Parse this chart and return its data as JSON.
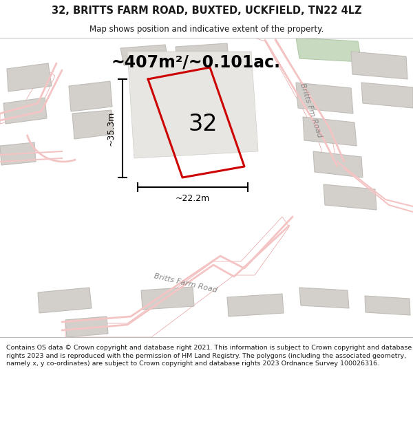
{
  "title": "32, BRITTS FARM ROAD, BUXTED, UCKFIELD, TN22 4LZ",
  "subtitle": "Map shows position and indicative extent of the property.",
  "area_label": "~407m²/~0.101ac.",
  "plot_number": "32",
  "dim_height": "~35.3m",
  "dim_width": "~22.2m",
  "road_label_diag": "Britts Farm Road",
  "road_label_vert": "Britts Fm Road",
  "copyright_text": "Contains OS data © Crown copyright and database right 2021. This information is subject to Crown copyright and database rights 2023 and is reproduced with the permission of HM Land Registry. The polygons (including the associated geometry, namely x, y co-ordinates) are subject to Crown copyright and database rights 2023 Ordnance Survey 100026316.",
  "bg_color": "#f0efed",
  "plot_fill": "#f0efed",
  "plot_edge": "#cc0000",
  "building_color": "#d3d0cb",
  "building_edge": "#c0bdb8",
  "road_color": "#f4c4c4",
  "road_edge": "#e8a0a0",
  "green_color": "#c8dbc0",
  "green_edge": "#b0c8a8",
  "dim_color": "#000000",
  "text_dark": "#1a1a1a",
  "text_gray": "#888888"
}
